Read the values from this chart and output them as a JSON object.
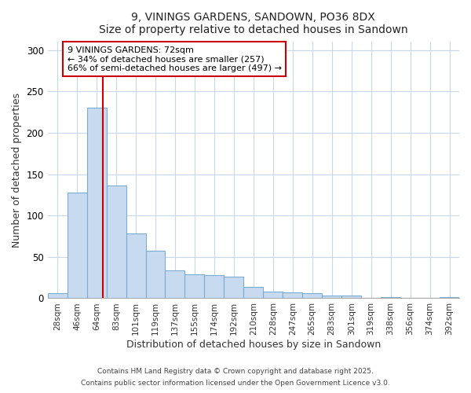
{
  "title1": "9, VININGS GARDENS, SANDOWN, PO36 8DX",
  "title2": "Size of property relative to detached houses in Sandown",
  "xlabel": "Distribution of detached houses by size in Sandown",
  "ylabel": "Number of detached properties",
  "bar_labels": [
    "28sqm",
    "46sqm",
    "64sqm",
    "83sqm",
    "101sqm",
    "119sqm",
    "137sqm",
    "155sqm",
    "174sqm",
    "192sqm",
    "210sqm",
    "228sqm",
    "247sqm",
    "265sqm",
    "283sqm",
    "301sqm",
    "319sqm",
    "338sqm",
    "356sqm",
    "374sqm",
    "392sqm"
  ],
  "bar_values": [
    6,
    128,
    230,
    136,
    78,
    57,
    34,
    29,
    28,
    26,
    14,
    8,
    7,
    6,
    3,
    3,
    0,
    1,
    0,
    0,
    1
  ],
  "bar_color": "#c8daf0",
  "bar_edgecolor": "#7aadd4",
  "vline_x_index": 2,
  "vline_x_offset": 0.3,
  "annotation_title": "9 VININGS GARDENS: 72sqm",
  "annotation_line1": "← 34% of detached houses are smaller (257)",
  "annotation_line2": "66% of semi-detached houses are larger (497) →",
  "vline_color": "#cc0000",
  "annotation_box_edgecolor": "#cc0000",
  "ylim": [
    0,
    310
  ],
  "yticks": [
    0,
    50,
    100,
    150,
    200,
    250,
    300
  ],
  "grid_color": "#c8d8ec",
  "bg_color": "#ffffff",
  "footer1": "Contains HM Land Registry data © Crown copyright and database right 2025.",
  "footer2": "Contains public sector information licensed under the Open Government Licence v3.0."
}
